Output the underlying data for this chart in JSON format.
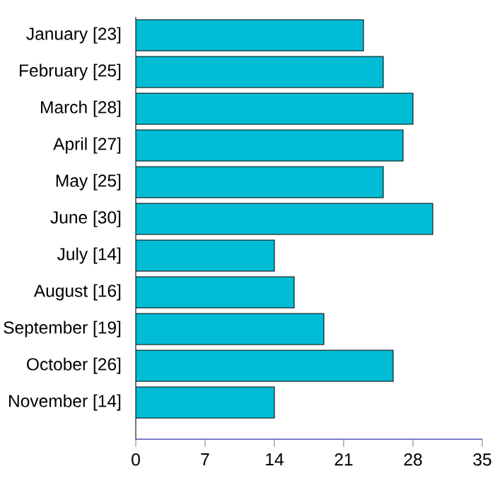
{
  "chart_data": {
    "type": "bar",
    "orientation": "horizontal",
    "categories": [
      "January [23]",
      "February [25]",
      "March [28]",
      "April [27]",
      "May [25]",
      "June [30]",
      "July [14]",
      "August [16]",
      "September [19]",
      "October [26]",
      "November [14]"
    ],
    "values": [
      23,
      25,
      28,
      27,
      25,
      30,
      14,
      16,
      19,
      26,
      14
    ],
    "color": "#00bcd4",
    "xlim": [
      0,
      35
    ],
    "xticks": [
      0,
      7,
      14,
      21,
      28,
      35
    ],
    "grid": false
  }
}
